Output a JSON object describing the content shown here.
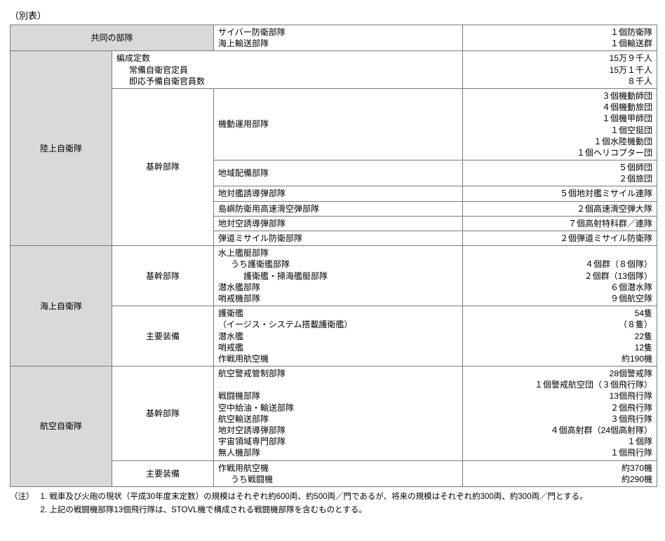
{
  "title": "（別表）",
  "table": {
    "columns": [
      "c1",
      "c2",
      "c3",
      "c4"
    ],
    "joint": {
      "label": "共同の部隊",
      "units": [
        "サイバー防衛部隊",
        "海上輸送部隊"
      ],
      "values": [
        "１個防衛隊",
        "１個輸送群"
      ]
    },
    "gsdf": {
      "label": "陸上自衛隊",
      "personnel": {
        "lines": [
          "編成定数",
          "常備自衛官定員",
          "即応予備自衛官員数"
        ],
        "values": [
          "15万９千人",
          "15万１千人",
          "８千人"
        ]
      },
      "core_label": "基幹部隊",
      "mobile": {
        "label": "機動運用部隊",
        "values": [
          "３個機動師団",
          "４個機動旅団",
          "１個機甲師団",
          "１個空挺団",
          "１個水陸機動団",
          "１個ヘリコプター団"
        ]
      },
      "regional": {
        "label": "地域配備部隊",
        "values": [
          "５個師団",
          "２個旅団"
        ]
      },
      "ashm": {
        "label": "地対艦誘導弾部隊",
        "value": "５個地対艦ミサイル連隊"
      },
      "island": {
        "label": "島嶼防衛用高速滑空弾部隊",
        "value": "２個高速滑空弾大隊"
      },
      "sam": {
        "label": "地対空誘導弾部隊",
        "value": "７個高射特科群／連隊"
      },
      "bmd": {
        "label": "弾道ミサイル防衛部隊",
        "value": "２個弾道ミサイル防衛隊"
      }
    },
    "msdf": {
      "label": "海上自衛隊",
      "core_label": "基幹部隊",
      "core": {
        "lines": [
          "水上艦艇部隊",
          "うち護衛艦部隊",
          "護衛艦・掃海艦艇部隊",
          "潜水艦部隊",
          "哨戒機部隊"
        ],
        "values": [
          "",
          "４個群（８個隊）",
          "２個群（13個隊）",
          "６個潜水隊",
          "９個航空隊"
        ]
      },
      "equip_label": "主要装備",
      "equip": {
        "lines": [
          "護衛艦",
          "（イージス・システム搭載護衛艦）",
          "潜水艦",
          "哨戒艦",
          "作戦用航空機"
        ],
        "values": [
          "54隻",
          "（８隻）",
          "22隻",
          "12隻",
          "約190機"
        ]
      }
    },
    "asdf": {
      "label": "航空自衛隊",
      "core_label": "基幹部隊",
      "core": {
        "lines": [
          "航空警戒管制部隊",
          "",
          "戦闘機部隊",
          "空中給油・輸送部隊",
          "航空輸送部隊",
          "地対空誘導弾部隊",
          "宇宙領域専門部隊",
          "無人機部隊"
        ],
        "values": [
          "28個警戒隊",
          "１個警戒航空団（３個飛行隊）",
          "13個飛行隊",
          "２個飛行隊",
          "３個飛行隊",
          "４個高射群（24個高射隊）",
          "１個隊",
          "１個飛行隊"
        ]
      },
      "equip_label": "主要装備",
      "equip": {
        "lines": [
          "作戦用航空機",
          "うち戦闘機"
        ],
        "values": [
          "約370機",
          "約290機"
        ]
      }
    }
  },
  "notes": {
    "label": "（注）",
    "items": [
      "戦車及び火砲の現状（平成30年度末定数）の規模はそれぞれ約600両、約500両／門であるが、将来の規模はそれぞれ約300両、約300両／門とする。",
      "上記の戦闘機部隊13個飛行隊は、STOVL機で構成される戦闘機部隊を含むものとする。"
    ]
  }
}
